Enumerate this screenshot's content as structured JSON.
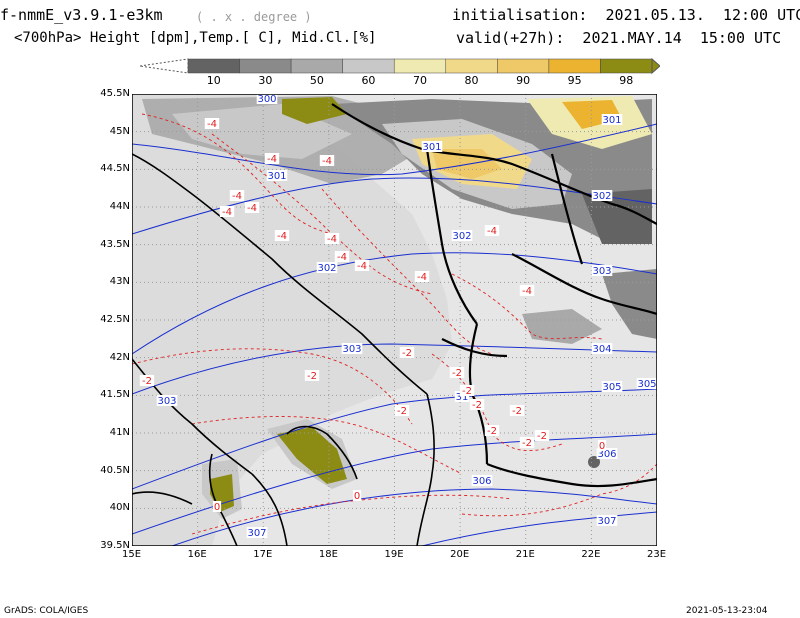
{
  "header": {
    "model": "f-nmmE_v3.9.1-e3km",
    "units_note": "( . x . degree )",
    "init": "initialisation:  2021.05.13.  12:00 UTC",
    "fields": "<700hPa> Height [dpm],Temp.[ C], Mid.Cl.[%]",
    "valid": "valid(+27h):  2021.MAY.14  15:00 UTC"
  },
  "colorbar": {
    "ticks": [
      "10",
      "30",
      "50",
      "60",
      "70",
      "80",
      "90",
      "95",
      "98"
    ],
    "colors": [
      "#636363",
      "#8a8a8a",
      "#a9a9a9",
      "#c8c8c8",
      "#eeeab2",
      "#f1d98a",
      "#efc868",
      "#ebb330",
      "#8c8c14"
    ]
  },
  "map": {
    "lon_labels": [
      "15E",
      "16E",
      "17E",
      "18E",
      "19E",
      "20E",
      "21E",
      "22E",
      "23E"
    ],
    "lat_labels": [
      "45.5N",
      "45N",
      "44.5N",
      "44N",
      "43.5N",
      "43N",
      "42.5N",
      "42N",
      "41.5N",
      "41N",
      "40.5N",
      "40N",
      "39.5N"
    ],
    "height_labels": [
      "300",
      "301",
      "301",
      "301",
      "302",
      "302",
      "302",
      "303",
      "303",
      "303",
      "304",
      "305",
      "305",
      "306",
      "306",
      "307",
      "307",
      "31"
    ],
    "temp_labels": [
      "-4",
      "-4",
      "-4",
      "-4",
      "-4",
      "-4",
      "-4",
      "-4",
      "-4",
      "-4",
      "-4",
      "-4",
      "-4",
      "-2",
      "-2",
      "-2",
      "-2",
      "-2",
      "-2",
      "-2",
      "-2",
      "-2",
      "-2",
      "-2",
      "0",
      "0",
      "0"
    ],
    "colors": {
      "height": "#1a2fd0",
      "temp": "#e02020",
      "coast": "#000000",
      "grid": "#9a9a9a",
      "background": "#e6e6e6"
    }
  },
  "footer": {
    "left": "GrADS: COLA/IGES",
    "right": "2021-05-13-23:04"
  }
}
